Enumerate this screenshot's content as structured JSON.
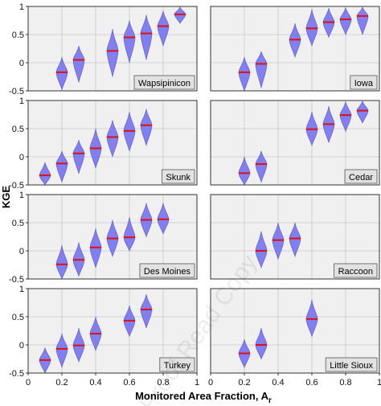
{
  "chart_data": {
    "type": "violin",
    "ylabel": "KGE",
    "xlabel": "Monitored Area Fraction, A",
    "xlabel_subscript": "r",
    "xlim": [
      0,
      1
    ],
    "ylim": [
      -0.5,
      1
    ],
    "x_ticks": [
      "0",
      "0.2",
      "0.4",
      "0.6",
      "0.8",
      "1"
    ],
    "y_ticks": [
      "-0.5",
      "0",
      "0.5",
      "1"
    ],
    "grid": true,
    "layout": "4 rows x 2 columns, panel name in bottom-right corner",
    "panels": [
      {
        "name": "Wapsipinicon",
        "x": [
          0.2,
          0.3,
          0.5,
          0.6,
          0.7,
          0.8,
          0.9
        ],
        "median": [
          -0.17,
          0.05,
          0.21,
          0.45,
          0.52,
          0.65,
          0.86
        ],
        "min": [
          -0.48,
          -0.35,
          -0.25,
          0.0,
          0.05,
          0.3,
          0.7
        ],
        "max": [
          0.1,
          0.3,
          0.6,
          0.75,
          0.85,
          0.92,
          0.99
        ]
      },
      {
        "name": "Iowa",
        "x": [
          0.2,
          0.3,
          0.5,
          0.6,
          0.7,
          0.8,
          0.9
        ],
        "median": [
          -0.17,
          -0.02,
          0.41,
          0.61,
          0.72,
          0.77,
          0.83
        ],
        "min": [
          -0.5,
          -0.45,
          0.1,
          0.3,
          0.45,
          0.5,
          0.5
        ],
        "max": [
          0.1,
          0.2,
          0.7,
          0.95,
          0.97,
          0.98,
          0.99
        ]
      },
      {
        "name": "Skunk",
        "x": [
          0.1,
          0.2,
          0.3,
          0.4,
          0.5,
          0.6,
          0.7
        ],
        "median": [
          -0.33,
          -0.12,
          0.06,
          0.15,
          0.35,
          0.46,
          0.56
        ],
        "min": [
          -0.5,
          -0.45,
          -0.3,
          -0.2,
          0.0,
          0.1,
          0.2
        ],
        "max": [
          -0.1,
          0.1,
          0.3,
          0.5,
          0.65,
          0.8,
          0.85
        ]
      },
      {
        "name": "Cedar",
        "x": [
          0.2,
          0.3,
          0.6,
          0.7,
          0.8,
          0.9
        ],
        "median": [
          -0.29,
          -0.13,
          0.49,
          0.58,
          0.74,
          0.82
        ],
        "min": [
          -0.5,
          -0.45,
          0.2,
          0.25,
          0.45,
          0.6
        ],
        "max": [
          0.0,
          0.1,
          0.8,
          0.9,
          0.98,
          0.99
        ]
      },
      {
        "name": "Des Moines",
        "x": [
          0.2,
          0.3,
          0.4,
          0.5,
          0.6,
          0.7,
          0.8
        ],
        "median": [
          -0.24,
          -0.16,
          0.06,
          0.22,
          0.24,
          0.55,
          0.56
        ],
        "min": [
          -0.5,
          -0.45,
          -0.3,
          -0.1,
          0.0,
          0.25,
          0.3
        ],
        "max": [
          0.1,
          0.15,
          0.4,
          0.55,
          0.6,
          0.85,
          0.85
        ]
      },
      {
        "name": "Raccoon",
        "x": [
          0.3,
          0.4,
          0.5
        ],
        "median": [
          0.0,
          0.19,
          0.22
        ],
        "min": [
          -0.3,
          -0.15,
          -0.1
        ],
        "max": [
          0.35,
          0.5,
          0.5
        ]
      },
      {
        "name": "Turkey",
        "x": [
          0.1,
          0.2,
          0.3,
          0.4,
          0.6,
          0.7
        ],
        "median": [
          -0.27,
          -0.07,
          -0.01,
          0.2,
          0.43,
          0.63
        ],
        "min": [
          -0.5,
          -0.4,
          -0.3,
          -0.1,
          0.15,
          0.3
        ],
        "max": [
          -0.05,
          0.2,
          0.3,
          0.5,
          0.7,
          0.9
        ]
      },
      {
        "name": "Little Sioux",
        "x": [
          0.2,
          0.3,
          0.6
        ],
        "median": [
          -0.15,
          0.0,
          0.46
        ],
        "min": [
          -0.4,
          -0.25,
          0.15
        ],
        "max": [
          0.1,
          0.3,
          0.8
        ]
      }
    ],
    "colors": {
      "violin_fill": "#7b78f0",
      "violin_edge": "#5a58c8",
      "median_line": "#e01010",
      "panel_bg": "#f0f0f0",
      "grid": "#c8c8c8",
      "label_box": "#e2e2e2"
    }
  },
  "watermark": "Proof Read Copy"
}
